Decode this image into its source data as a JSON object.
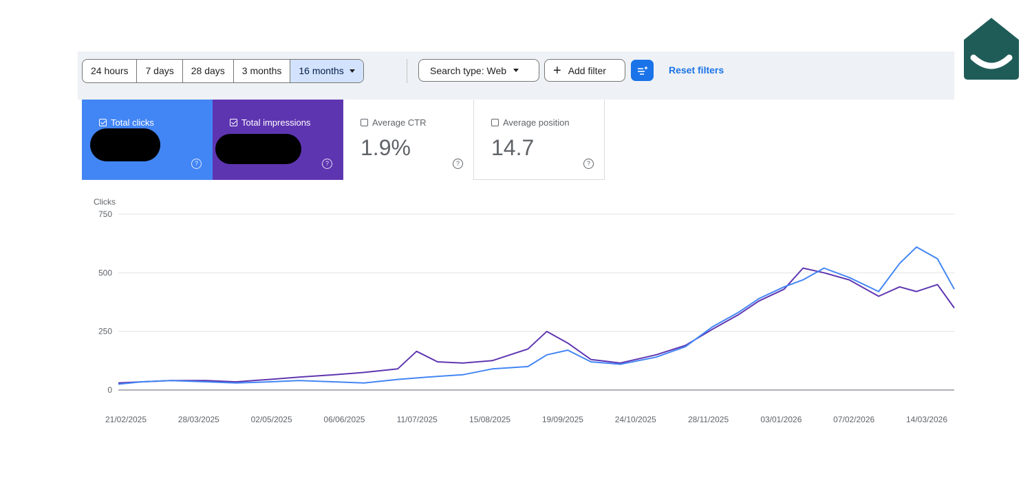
{
  "toolbar": {
    "date_ranges": [
      "24 hours",
      "7 days",
      "28 days",
      "3 months",
      "16 months"
    ],
    "selected_range": "16 months",
    "search_type": "Search type: Web",
    "add_filter": "Add filter",
    "reset_filters": "Reset filters"
  },
  "metrics": {
    "total_clicks": {
      "label": "Total clicks",
      "checked": true
    },
    "total_impressions": {
      "label": "Total impressions",
      "checked": true
    },
    "average_ctr": {
      "label": "Average CTR",
      "value": "1.9%",
      "checked": false
    },
    "average_position": {
      "label": "Average position",
      "value": "14.7",
      "checked": false
    }
  },
  "colors": {
    "clicks": "#4285f4",
    "impressions": "#5e35b1",
    "accent": "#1a73e8",
    "logo": "#1f5c58"
  },
  "icons": [
    "chevron-down-icon",
    "plus-icon",
    "filter-sparkle-icon",
    "help-icon",
    "checkbox-icon",
    "brand-logo-icon"
  ],
  "chart_data": {
    "type": "line",
    "ylabel": "Clicks",
    "ylim": [
      0,
      750
    ],
    "y_ticks": [
      0,
      250,
      500,
      750
    ],
    "x_tick_labels": [
      "21/02/2025",
      "28/03/2025",
      "02/05/2025",
      "06/06/2025",
      "11/07/2025",
      "15/08/2025",
      "19/09/2025",
      "24/10/2025",
      "28/11/2025",
      "03/01/2026",
      "07/02/2026",
      "14/03/2026"
    ],
    "x_range": [
      "2025-02-18",
      "2026-03-23"
    ],
    "grid": true,
    "series": [
      {
        "color": "#4285f4",
        "x": [
          "2025-02-18",
          "2025-03-01",
          "2025-03-15",
          "2025-04-01",
          "2025-04-15",
          "2025-05-01",
          "2025-05-15",
          "2025-06-01",
          "2025-06-15",
          "2025-07-01",
          "2025-07-15",
          "2025-08-01",
          "2025-08-15",
          "2025-09-01",
          "2025-09-10",
          "2025-09-20",
          "2025-10-01",
          "2025-10-15",
          "2025-11-01",
          "2025-11-15",
          "2025-11-28",
          "2025-12-10",
          "2025-12-20",
          "2026-01-01",
          "2026-01-10",
          "2026-01-20",
          "2026-02-01",
          "2026-02-15",
          "2026-02-25",
          "2026-03-05",
          "2026-03-15",
          "2026-03-23"
        ],
        "values": [
          25,
          35,
          40,
          35,
          30,
          35,
          40,
          35,
          30,
          45,
          55,
          65,
          90,
          100,
          150,
          170,
          120,
          110,
          140,
          185,
          270,
          330,
          390,
          440,
          470,
          520,
          480,
          420,
          540,
          610,
          560,
          430
        ]
      },
      {
        "color": "#5e35b1",
        "x": [
          "2025-02-18",
          "2025-03-01",
          "2025-03-15",
          "2025-04-01",
          "2025-04-15",
          "2025-05-01",
          "2025-05-15",
          "2025-06-01",
          "2025-06-15",
          "2025-07-01",
          "2025-07-10",
          "2025-07-20",
          "2025-08-01",
          "2025-08-15",
          "2025-09-01",
          "2025-09-10",
          "2025-09-20",
          "2025-10-01",
          "2025-10-15",
          "2025-11-01",
          "2025-11-15",
          "2025-11-28",
          "2025-12-10",
          "2025-12-20",
          "2026-01-01",
          "2026-01-10",
          "2026-01-20",
          "2026-02-01",
          "2026-02-15",
          "2026-02-25",
          "2026-03-05",
          "2026-03-15",
          "2026-03-23"
        ],
        "values": [
          30,
          35,
          40,
          40,
          35,
          45,
          55,
          65,
          75,
          90,
          165,
          120,
          115,
          125,
          175,
          250,
          200,
          130,
          115,
          150,
          190,
          260,
          320,
          380,
          430,
          520,
          500,
          470,
          400,
          440,
          420,
          450,
          350
        ]
      }
    ]
  }
}
